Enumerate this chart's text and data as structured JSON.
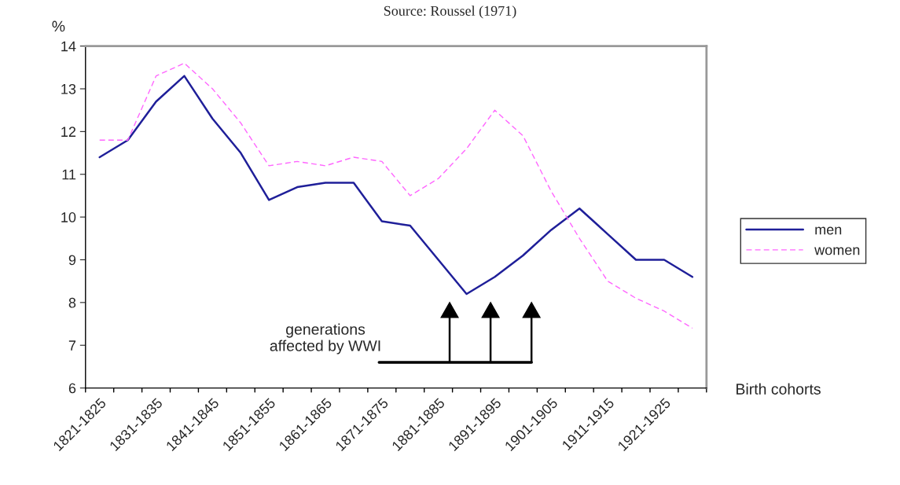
{
  "chart_data": {
    "type": "line",
    "ylabel": "%",
    "xlabel": "Birth cohorts",
    "categories": [
      "1821-1825",
      null,
      "1831-1835",
      null,
      "1841-1845",
      null,
      "1851-1855",
      null,
      "1861-1865",
      null,
      "1871-1875",
      null,
      "1881-1885",
      null,
      "1891-1895",
      null,
      "1901-1905",
      null,
      "1911-1915",
      null,
      "1921-1925",
      null
    ],
    "series": [
      {
        "name": "men",
        "color": "#1f1f99",
        "line_style": "solid",
        "values": [
          11.4,
          11.8,
          12.7,
          13.3,
          12.3,
          11.5,
          10.4,
          10.7,
          10.8,
          10.8,
          9.9,
          9.8,
          9.0,
          8.2,
          8.6,
          9.1,
          9.7,
          10.2,
          9.6,
          9.0,
          9.0,
          8.6
        ]
      },
      {
        "name": "women",
        "color": "#ff66ff",
        "line_style": "dashed",
        "values": [
          11.8,
          11.8,
          13.3,
          13.6,
          13.0,
          12.2,
          11.2,
          11.3,
          11.2,
          11.4,
          11.3,
          10.5,
          10.9,
          11.6,
          12.5,
          11.9,
          10.6,
          9.5,
          8.5,
          8.1,
          7.8,
          7.4
        ]
      }
    ],
    "ylim": [
      6,
      14
    ],
    "yticks": [
      6,
      7,
      8,
      9,
      10,
      11,
      12,
      13,
      14
    ],
    "grid": false,
    "legend": "right",
    "marker": "none",
    "annotations": [
      "Source: Roussel (1971)",
      "generations\naffected by WWI"
    ]
  }
}
